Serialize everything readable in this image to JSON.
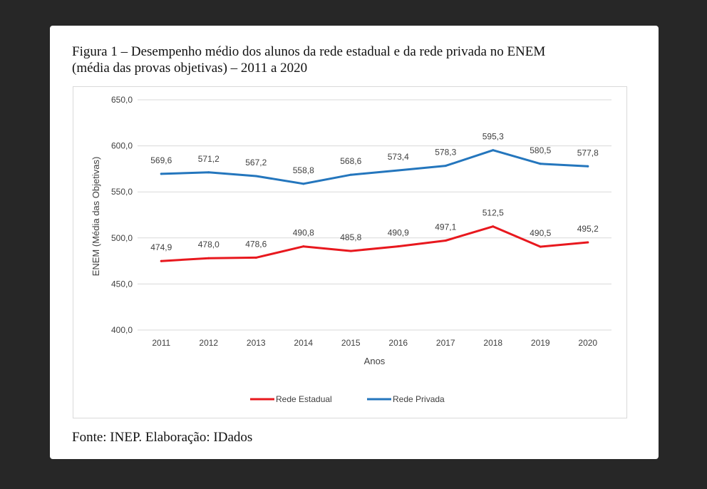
{
  "figure": {
    "caption_line1": "Figura 1 – Desempenho médio dos alunos da rede estadual e da rede privada no ENEM",
    "caption_line2": "(média das provas objetivas) – 2011 a 2020",
    "source": "Fonte: INEP. Elaboração: IDados"
  },
  "chart_data": {
    "type": "line",
    "title": "",
    "xlabel": "Anos",
    "ylabel": "ENEM (Média das Objetivas)",
    "categories": [
      "2011",
      "2012",
      "2013",
      "2014",
      "2015",
      "2016",
      "2017",
      "2018",
      "2019",
      "2020"
    ],
    "ylim": [
      400,
      650
    ],
    "yticks": [
      "400,0",
      "450,0",
      "500,0",
      "550,0",
      "600,0",
      "650,0"
    ],
    "grid": "horizontal",
    "legend_position": "bottom",
    "series": [
      {
        "name": "Rede Estadual",
        "color": "#e8181e",
        "values": [
          474.9,
          478.0,
          478.6,
          490.8,
          485.8,
          490.9,
          497.1,
          512.5,
          490.5,
          495.2
        ],
        "labels": [
          "474,9",
          "478,0",
          "478,6",
          "490,8",
          "485,8",
          "490,9",
          "497,1",
          "512,5",
          "490,5",
          "495,2"
        ]
      },
      {
        "name": "Rede Privada",
        "color": "#2476bd",
        "values": [
          569.6,
          571.2,
          567.2,
          558.8,
          568.6,
          573.4,
          578.3,
          595.3,
          580.5,
          577.8
        ],
        "labels": [
          "569,6",
          "571,2",
          "567,2",
          "558,8",
          "568,6",
          "573,4",
          "578,3",
          "595,3",
          "580,5",
          "577,8"
        ]
      }
    ]
  }
}
